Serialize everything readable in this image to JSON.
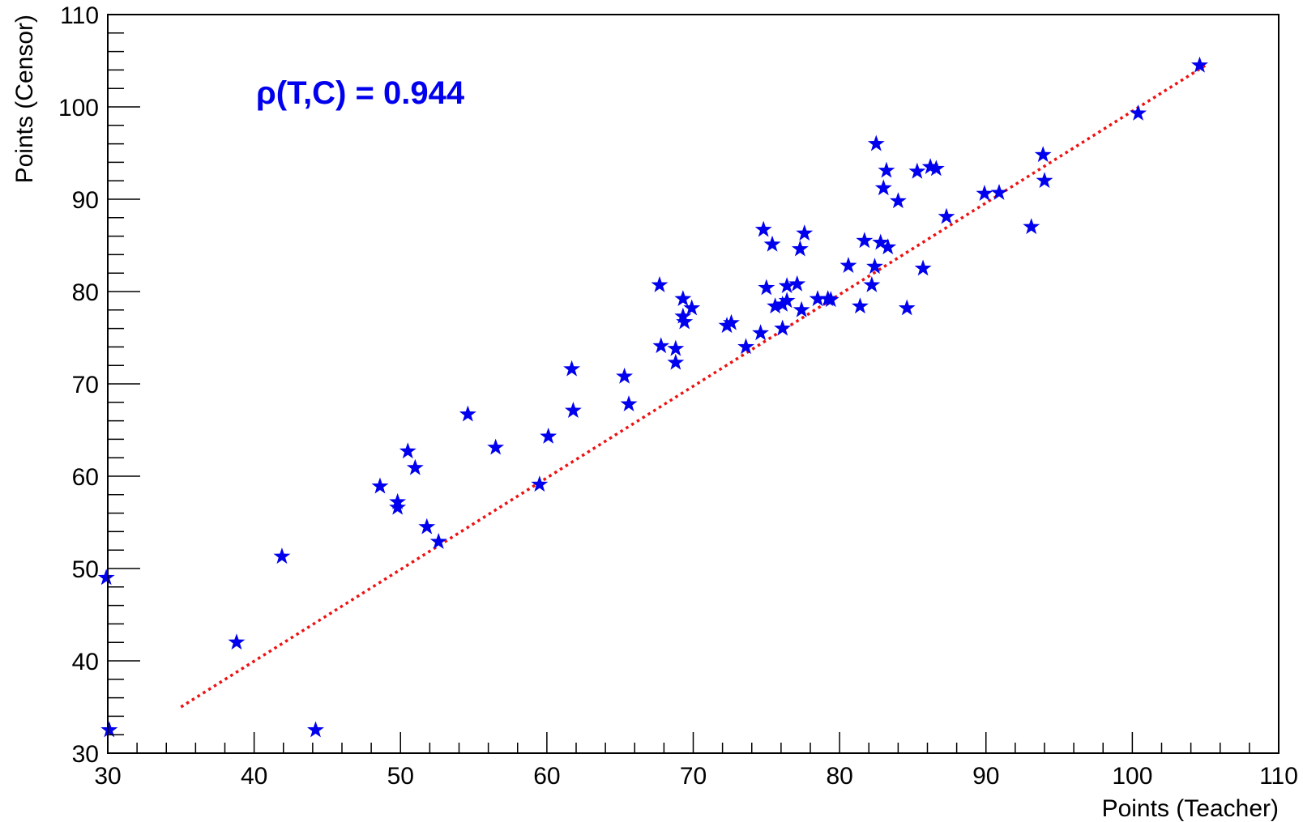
{
  "chart_data": {
    "type": "scatter",
    "xlabel": "Points (Teacher)",
    "ylabel": "Points (Censor)",
    "xlim": [
      30,
      110
    ],
    "ylim": [
      30,
      110
    ],
    "xticks": [
      "30",
      "40",
      "50",
      "60",
      "70",
      "80",
      "90",
      "100",
      "110"
    ],
    "yticks": [
      "30",
      "40",
      "50",
      "60",
      "70",
      "80",
      "90",
      "100",
      "110"
    ],
    "grid": false,
    "marker": "star",
    "annotation": "ρ(T,C) = 0.944",
    "colors": {
      "points": "#0000ee",
      "fit_line": "#ee1111",
      "annotation": "#0000ee"
    },
    "fit_line": {
      "x": [
        35,
        105
      ],
      "y": [
        35,
        104.5
      ],
      "style": "dotted"
    },
    "points": [
      {
        "x": 29.9,
        "y": 49.0
      },
      {
        "x": 30.1,
        "y": 32.5
      },
      {
        "x": 38.8,
        "y": 42.0
      },
      {
        "x": 41.9,
        "y": 51.3
      },
      {
        "x": 44.2,
        "y": 32.5
      },
      {
        "x": 48.6,
        "y": 58.9
      },
      {
        "x": 49.8,
        "y": 57.2
      },
      {
        "x": 49.8,
        "y": 56.6
      },
      {
        "x": 50.5,
        "y": 62.7
      },
      {
        "x": 51.0,
        "y": 60.9
      },
      {
        "x": 51.8,
        "y": 54.5
      },
      {
        "x": 52.6,
        "y": 52.9
      },
      {
        "x": 54.6,
        "y": 66.7
      },
      {
        "x": 56.5,
        "y": 63.1
      },
      {
        "x": 59.5,
        "y": 59.1
      },
      {
        "x": 60.1,
        "y": 64.3
      },
      {
        "x": 61.7,
        "y": 71.6
      },
      {
        "x": 61.8,
        "y": 67.1
      },
      {
        "x": 65.3,
        "y": 70.8
      },
      {
        "x": 65.6,
        "y": 67.8
      },
      {
        "x": 67.7,
        "y": 80.7
      },
      {
        "x": 67.8,
        "y": 74.1
      },
      {
        "x": 68.8,
        "y": 73.8
      },
      {
        "x": 68.8,
        "y": 72.3
      },
      {
        "x": 69.3,
        "y": 79.2
      },
      {
        "x": 69.3,
        "y": 77.3
      },
      {
        "x": 69.4,
        "y": 76.7
      },
      {
        "x": 69.9,
        "y": 78.2
      },
      {
        "x": 72.3,
        "y": 76.3
      },
      {
        "x": 72.6,
        "y": 76.6
      },
      {
        "x": 73.6,
        "y": 74.0
      },
      {
        "x": 74.6,
        "y": 75.5
      },
      {
        "x": 74.8,
        "y": 86.7
      },
      {
        "x": 75.0,
        "y": 80.4
      },
      {
        "x": 75.4,
        "y": 85.1
      },
      {
        "x": 75.6,
        "y": 78.4
      },
      {
        "x": 76.1,
        "y": 78.6
      },
      {
        "x": 76.1,
        "y": 76.0
      },
      {
        "x": 76.4,
        "y": 80.6
      },
      {
        "x": 76.4,
        "y": 79.0
      },
      {
        "x": 77.1,
        "y": 80.8
      },
      {
        "x": 77.3,
        "y": 84.6
      },
      {
        "x": 77.4,
        "y": 78.0
      },
      {
        "x": 77.6,
        "y": 86.3
      },
      {
        "x": 78.5,
        "y": 79.2
      },
      {
        "x": 79.2,
        "y": 79.2
      },
      {
        "x": 79.4,
        "y": 79.1
      },
      {
        "x": 80.6,
        "y": 82.8
      },
      {
        "x": 81.4,
        "y": 78.4
      },
      {
        "x": 81.7,
        "y": 85.5
      },
      {
        "x": 82.2,
        "y": 80.7
      },
      {
        "x": 82.4,
        "y": 82.7
      },
      {
        "x": 82.5,
        "y": 96.0
      },
      {
        "x": 82.8,
        "y": 85.3
      },
      {
        "x": 83.0,
        "y": 91.2
      },
      {
        "x": 83.2,
        "y": 93.1
      },
      {
        "x": 83.3,
        "y": 84.8
      },
      {
        "x": 84.0,
        "y": 89.8
      },
      {
        "x": 84.6,
        "y": 78.2
      },
      {
        "x": 85.3,
        "y": 93.0
      },
      {
        "x": 85.7,
        "y": 82.5
      },
      {
        "x": 86.2,
        "y": 93.5
      },
      {
        "x": 86.6,
        "y": 93.3
      },
      {
        "x": 87.3,
        "y": 88.1
      },
      {
        "x": 89.9,
        "y": 90.6
      },
      {
        "x": 90.9,
        "y": 90.7
      },
      {
        "x": 93.1,
        "y": 87.0
      },
      {
        "x": 93.9,
        "y": 94.8
      },
      {
        "x": 94.0,
        "y": 92.0
      },
      {
        "x": 100.4,
        "y": 99.3
      },
      {
        "x": 104.6,
        "y": 104.5
      }
    ]
  }
}
